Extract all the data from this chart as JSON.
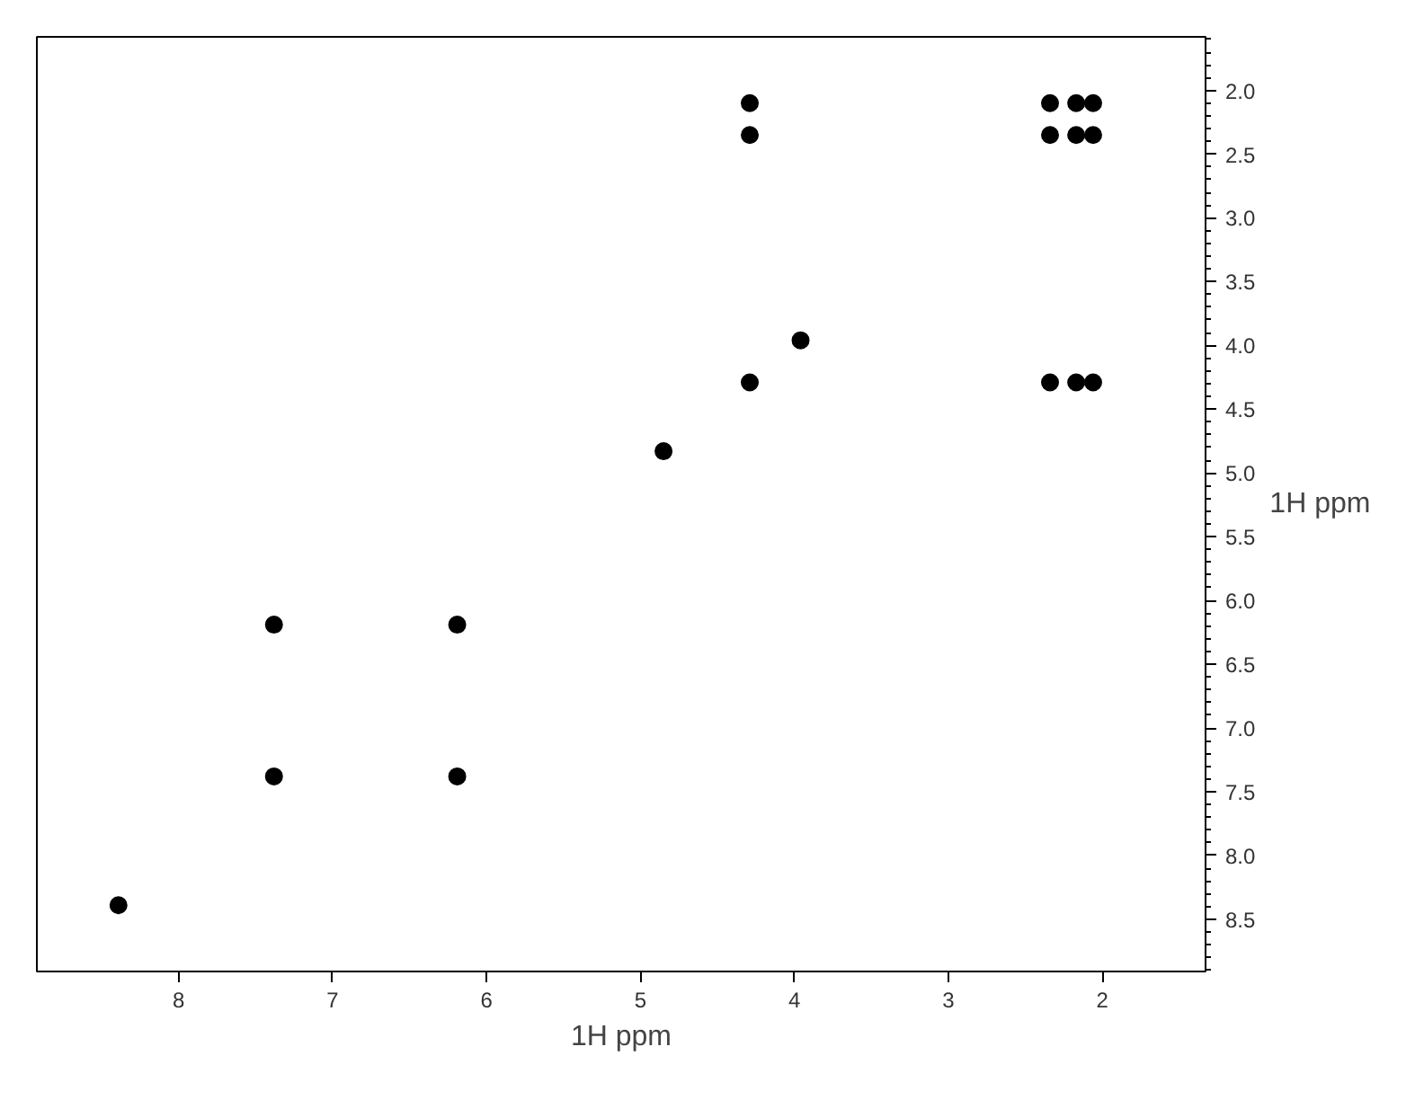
{
  "chart_data": {
    "type": "scatter",
    "xlabel": "1H ppm",
    "ylabel": "1H ppm",
    "x": [
      8.39,
      7.38,
      7.38,
      6.19,
      6.19,
      4.85,
      3.96,
      4.29,
      4.29,
      4.29,
      2.34,
      2.17,
      2.06,
      2.34,
      2.17,
      2.06,
      2.34,
      2.17,
      2.06
    ],
    "series": [
      {
        "color": "#000000",
        "values": [
          8.39,
          6.19,
          7.38,
          6.19,
          7.38,
          4.83,
          3.96,
          2.1,
          2.35,
          4.29,
          2.1,
          2.1,
          2.1,
          2.35,
          2.35,
          2.35,
          4.29,
          4.29,
          4.29
        ]
      }
    ],
    "xlim": [
      8.92,
      1.33
    ],
    "ylim": [
      8.91,
      1.58
    ],
    "xticks": [
      8,
      7,
      6,
      5,
      4,
      3,
      2
    ],
    "yticks": [
      {
        "value": 2,
        "label": "2.0"
      },
      2.5,
      {
        "value": 3,
        "label": "3.0"
      },
      3.5,
      {
        "value": 4,
        "label": "4.0"
      },
      4.5,
      {
        "value": 5,
        "label": "5.0"
      },
      5.5,
      {
        "value": 6,
        "label": "6.0"
      },
      6.5,
      {
        "value": 7,
        "label": "7.0"
      },
      7.5,
      {
        "value": 8,
        "label": "8.0"
      },
      8.5
    ],
    "marker": "circle"
  }
}
